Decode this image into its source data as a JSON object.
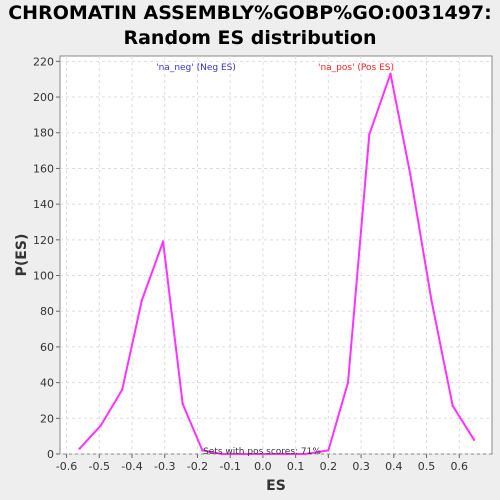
{
  "title": {
    "line1": "CHROMATIN ASSEMBLY%GOBP%GO:0031497:",
    "line2": "Random ES distribution"
  },
  "colors": {
    "series": "#ff33ff",
    "neg_label": "#3333cc",
    "pos_label": "#ff2222",
    "grid": "#dddddd",
    "plot_bg": "#ffffff"
  },
  "chart_data": {
    "type": "line",
    "title": "CHROMATIN ASSEMBLY%GOBP%GO:0031497: Random ES distribution",
    "xlabel": "ES",
    "ylabel": "P(ES)",
    "xlim": [
      -0.62,
      0.7
    ],
    "ylim": [
      0,
      223
    ],
    "xticks": [
      -0.6,
      -0.5,
      -0.4,
      -0.3,
      -0.2,
      -0.1,
      0.0,
      0.1,
      0.2,
      0.3,
      0.4,
      0.5,
      0.6
    ],
    "xtick_labels": [
      "-0.6",
      "-0.5",
      "-0.4",
      "-0.3",
      "-0.2",
      "-0.1",
      "0.0",
      "0.1",
      "0.2",
      "0.3",
      "0.4",
      "0.5",
      "0.6"
    ],
    "yticks": [
      0,
      20,
      40,
      60,
      80,
      100,
      120,
      140,
      160,
      180,
      200,
      220
    ],
    "ytick_labels": [
      "0",
      "20",
      "40",
      "60",
      "80",
      "100",
      "120",
      "140",
      "160",
      "180",
      "200",
      "220"
    ],
    "grid": true,
    "series": [
      {
        "x": [
          -0.56,
          -0.495,
          -0.43,
          -0.37,
          -0.305,
          -0.245,
          -0.185,
          -0.125,
          -0.06,
          0.0,
          0.065,
          0.13,
          0.2,
          0.26,
          0.325,
          0.39,
          0.45,
          0.515,
          0.58,
          0.645
        ],
        "y": [
          3,
          16,
          36,
          86,
          119,
          28,
          2,
          0,
          0,
          0,
          0,
          0,
          2,
          40,
          179,
          213,
          157,
          86,
          27,
          8
        ]
      }
    ],
    "annotations": {
      "neg": "'na_neg' (Neg ES)",
      "pos": "'na_pos' (Pos ES)",
      "bottom": "Sets with pos scores: 71%"
    }
  }
}
